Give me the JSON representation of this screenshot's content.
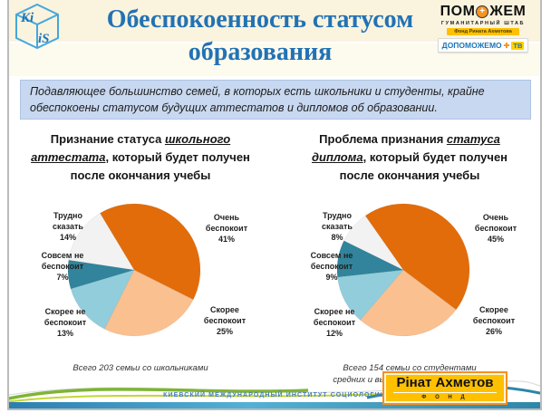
{
  "slide": {
    "title_line1": "Обеспокоенность статусом",
    "title_line2": "образования",
    "banner_text": "Подавляющее большинство семей, в которых есть школьники и студенты, крайне обеспокоены статусом будущих аттестатов и дипломов об образовании.",
    "footer_org": "КИЕВСКИЙ МЕЖДУНАРОДНЫЙ ИНСТИТУТ СОЦИОЛОГИИ"
  },
  "logos": {
    "kiis": {
      "text_top": "Ki",
      "text_bottom": "iS"
    },
    "pomozhem": {
      "title_part1": "ПОМ",
      "title_part2": "ЖЕМ",
      "plus": "+",
      "subtitle": "ГУМАНИТАРНЫЙ ШТАБ",
      "fond_bar": "Фонд Рината Ахметова",
      "dopomozhemo": "ДОПОМОЖЕМО",
      "dop_plus": "✚",
      "tv": "ТВ"
    },
    "akhmetov": {
      "name": "Рінат Ахметов",
      "fond": "Ф О Н Д"
    }
  },
  "colors": {
    "title_blue": "#2272b4",
    "banner_bg": "#c8d8f0",
    "pie_orange": "#E36C0A",
    "pie_peach": "#FAC090",
    "pie_lightblue": "#92CDDC",
    "pie_teal": "#31849B",
    "pie_gray": "#F2F2F2",
    "logo_yellow": "#FFC000"
  },
  "chart_data": [
    {
      "type": "pie",
      "title": "Признание статуса школьного аттестата, который будет получен после окончания учебы",
      "title_parts": {
        "prefix": "Признание статуса ",
        "emphasis": "школьного аттестата",
        "suffix": ", который будет получен после окончания учебы"
      },
      "labels": [
        "Очень беспокоит",
        "Скорее беспокоит",
        "Скорее не беспокоит",
        "Совсем не беспокоит",
        "Трудно сказать"
      ],
      "values": [
        41,
        25,
        13,
        7,
        14
      ],
      "colors": [
        "#E36C0A",
        "#FAC090",
        "#92CDDC",
        "#31849B",
        "#F2F2F2"
      ],
      "start_angle": -31,
      "legend_position": "callout-labels",
      "note": "Всего 203 семьи со школьниками"
    },
    {
      "type": "pie",
      "title": "Проблема признания статуса диплома, который будет получен после окончания учебы",
      "title_parts": {
        "prefix": "Проблема признания ",
        "emphasis": "статуса диплома",
        "suffix": ", который будет получен после окончания учебы"
      },
      "labels": [
        "Очень беспокоит",
        "Скорее беспокоит",
        "Скорее не беспокоит",
        "Совсем не беспокоит",
        "Трудно сказать"
      ],
      "values": [
        45,
        26,
        12,
        9,
        8
      ],
      "colors": [
        "#E36C0A",
        "#FAC090",
        "#92CDDC",
        "#31849B",
        "#F2F2F2"
      ],
      "start_angle": -35,
      "legend_position": "callout-labels",
      "note": "Всего 154 семьи со студентами средних и высших учебных заведений"
    }
  ]
}
